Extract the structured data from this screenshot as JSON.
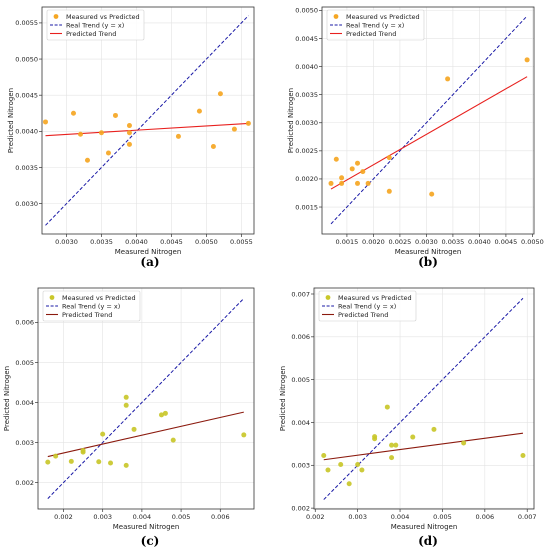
{
  "figure": {
    "colors": {
      "grid": "#e3e3e3",
      "frame": "#333333"
    },
    "panels": [
      {
        "caption": "(a)",
        "chart_data": {
          "type": "scatter",
          "xlabel": "Measured Nitrogen",
          "ylabel": "Predicted Nitrogen",
          "xlim": [
            0.00265,
            0.00568
          ],
          "ylim": [
            0.00258,
            0.00572
          ],
          "xticks": [
            0.003,
            0.0035,
            0.004,
            0.0045,
            0.005,
            0.0055
          ],
          "xtick_labels": [
            "0.0030",
            "0.0035",
            "0.0040",
            "0.0045",
            "0.0050",
            "0.0055"
          ],
          "yticks": [
            0.003,
            0.0035,
            0.004,
            0.0045,
            0.005,
            0.0055
          ],
          "ytick_labels": [
            "0.0030",
            "0.0035",
            "0.0040",
            "0.0045",
            "0.0050",
            "0.0055"
          ],
          "grid": true,
          "legend_position": "top-left",
          "series": [
            {
              "name": "Measured vs Predicted",
              "kind": "scatter",
              "color": "#f5a623",
              "x": [
                0.0027,
                0.0031,
                0.0032,
                0.0033,
                0.0035,
                0.0036,
                0.0037,
                0.0039,
                0.0039,
                0.0039,
                0.0046,
                0.0049,
                0.0051,
                0.0052,
                0.0054,
                0.0056
              ],
              "y": [
                0.00413,
                0.00425,
                0.00396,
                0.0036,
                0.00398,
                0.0037,
                0.00422,
                0.00408,
                0.00382,
                0.00398,
                0.00393,
                0.00428,
                0.00379,
                0.00452,
                0.00403,
                0.00411
              ]
            },
            {
              "name": "Real Trend (y = x)",
              "kind": "dashed-line",
              "color": "#1a1aa6",
              "x": [
                0.0027,
                0.0056
              ],
              "y": [
                0.0027,
                0.0056
              ]
            },
            {
              "name": "Predicted Trend",
              "kind": "line",
              "color": "#e8201e",
              "x": [
                0.0027,
                0.0056
              ],
              "y": [
                0.00394,
                0.00411
              ]
            }
          ]
        }
      },
      {
        "caption": "(b)",
        "chart_data": {
          "type": "scatter",
          "xlabel": "Measured Nitrogen",
          "ylabel": "Predicted Nitrogen",
          "xlim": [
            0.00103,
            0.00503
          ],
          "ylim": [
            0.00102,
            0.00506
          ],
          "xticks": [
            0.0015,
            0.002,
            0.0025,
            0.003,
            0.0035,
            0.004,
            0.0045,
            0.005
          ],
          "xtick_labels": [
            "0.0015",
            "0.0020",
            "0.0025",
            "0.0030",
            "0.0035",
            "0.0040",
            "0.0045",
            "0.0050"
          ],
          "yticks": [
            0.0015,
            0.002,
            0.0025,
            0.003,
            0.0035,
            0.004,
            0.0045,
            0.005
          ],
          "ytick_labels": [
            "0.0015",
            "0.0020",
            "0.0025",
            "0.0030",
            "0.0035",
            "0.0040",
            "0.0045",
            "0.0050"
          ],
          "grid": true,
          "legend_position": "top-left",
          "series": [
            {
              "name": "Measured vs Predicted",
              "kind": "scatter",
              "color": "#f5a623",
              "x": [
                0.0012,
                0.0013,
                0.0014,
                0.0014,
                0.0016,
                0.0017,
                0.0017,
                0.0018,
                0.0019,
                0.0023,
                0.0023,
                0.0031,
                0.0034,
                0.0049
              ],
              "y": [
                0.00192,
                0.00235,
                0.00202,
                0.00192,
                0.00218,
                0.00228,
                0.00192,
                0.00213,
                0.00192,
                0.00238,
                0.00178,
                0.00173,
                0.00378,
                0.00412
              ]
            },
            {
              "name": "Real Trend (y = x)",
              "kind": "dashed-line",
              "color": "#1a1aa6",
              "x": [
                0.0012,
                0.0049
              ],
              "y": [
                0.0012,
                0.0049
              ]
            },
            {
              "name": "Predicted Trend",
              "kind": "line",
              "color": "#e8201e",
              "x": [
                0.0012,
                0.0049
              ],
              "y": [
                0.00182,
                0.00382
              ]
            }
          ]
        }
      },
      {
        "caption": "(c)",
        "chart_data": {
          "type": "scatter",
          "xlabel": "Measured Nitrogen",
          "ylabel": "Predicted Nitrogen",
          "xlim": [
            0.00135,
            0.00686
          ],
          "ylim": [
            0.00134,
            0.00686
          ],
          "xticks": [
            0.002,
            0.003,
            0.004,
            0.005,
            0.006
          ],
          "xtick_labels": [
            "0.002",
            "0.003",
            "0.004",
            "0.005",
            "0.006"
          ],
          "yticks": [
            0.002,
            0.003,
            0.004,
            0.005,
            0.006
          ],
          "ytick_labels": [
            "0.002",
            "0.003",
            "0.004",
            "0.005",
            "0.006"
          ],
          "grid": true,
          "legend_position": "top-left",
          "series": [
            {
              "name": "Measured vs Predicted",
              "kind": "scatter",
              "color": "#c9c72a",
              "x": [
                0.0016,
                0.0018,
                0.0022,
                0.0025,
                0.0025,
                0.0029,
                0.003,
                0.0032,
                0.0036,
                0.0036,
                0.0036,
                0.0038,
                0.0045,
                0.0046,
                0.0048,
                0.0066
              ],
              "y": [
                0.00251,
                0.00266,
                0.00253,
                0.0028,
                0.00276,
                0.00252,
                0.00321,
                0.00249,
                0.00413,
                0.00393,
                0.00243,
                0.00333,
                0.00369,
                0.00373,
                0.00306,
                0.00319
              ]
            },
            {
              "name": "Real Trend (y = x)",
              "kind": "dashed-line",
              "color": "#1a1aa6",
              "x": [
                0.0016,
                0.0066
              ],
              "y": [
                0.0016,
                0.0066
              ]
            },
            {
              "name": "Predicted Trend",
              "kind": "line",
              "color": "#8b1a0e",
              "x": [
                0.0016,
                0.0066
              ],
              "y": [
                0.00265,
                0.00376
              ]
            }
          ]
        }
      },
      {
        "caption": "(d)",
        "chart_data": {
          "type": "scatter",
          "xlabel": "Measured Nitrogen",
          "ylabel": "Predicted Nitrogen",
          "xlim": [
            0.00197,
            0.00716
          ],
          "ylim": [
            0.00198,
            0.00714
          ],
          "xticks": [
            0.002,
            0.003,
            0.004,
            0.005,
            0.006,
            0.007
          ],
          "xtick_labels": [
            "0.002",
            "0.003",
            "0.004",
            "0.005",
            "0.006",
            "0.007"
          ],
          "yticks": [
            0.002,
            0.003,
            0.004,
            0.005,
            0.006,
            0.007
          ],
          "ytick_labels": [
            "0.002",
            "0.003",
            "0.004",
            "0.005",
            "0.006",
            "0.007"
          ],
          "grid": true,
          "legend_position": "top-left",
          "series": [
            {
              "name": "Measured vs Predicted",
              "kind": "scatter",
              "color": "#c9c72a",
              "x": [
                0.0022,
                0.0023,
                0.0026,
                0.0028,
                0.003,
                0.0031,
                0.0034,
                0.0034,
                0.0037,
                0.0038,
                0.0038,
                0.0039,
                0.0043,
                0.0048,
                0.0055,
                0.0069
              ],
              "y": [
                0.00323,
                0.00289,
                0.00302,
                0.00257,
                0.00302,
                0.00289,
                0.00367,
                0.00362,
                0.00436,
                0.00347,
                0.00318,
                0.00347,
                0.00366,
                0.00384,
                0.00352,
                0.00323
              ]
            },
            {
              "name": "Real Trend (y = x)",
              "kind": "dashed-line",
              "color": "#1a1aa6",
              "x": [
                0.0022,
                0.0069
              ],
              "y": [
                0.0022,
                0.0069
              ]
            },
            {
              "name": "Predicted Trend",
              "kind": "line",
              "color": "#8b1a0e",
              "x": [
                0.0022,
                0.0069
              ],
              "y": [
                0.00313,
                0.00375
              ]
            }
          ]
        }
      }
    ]
  }
}
